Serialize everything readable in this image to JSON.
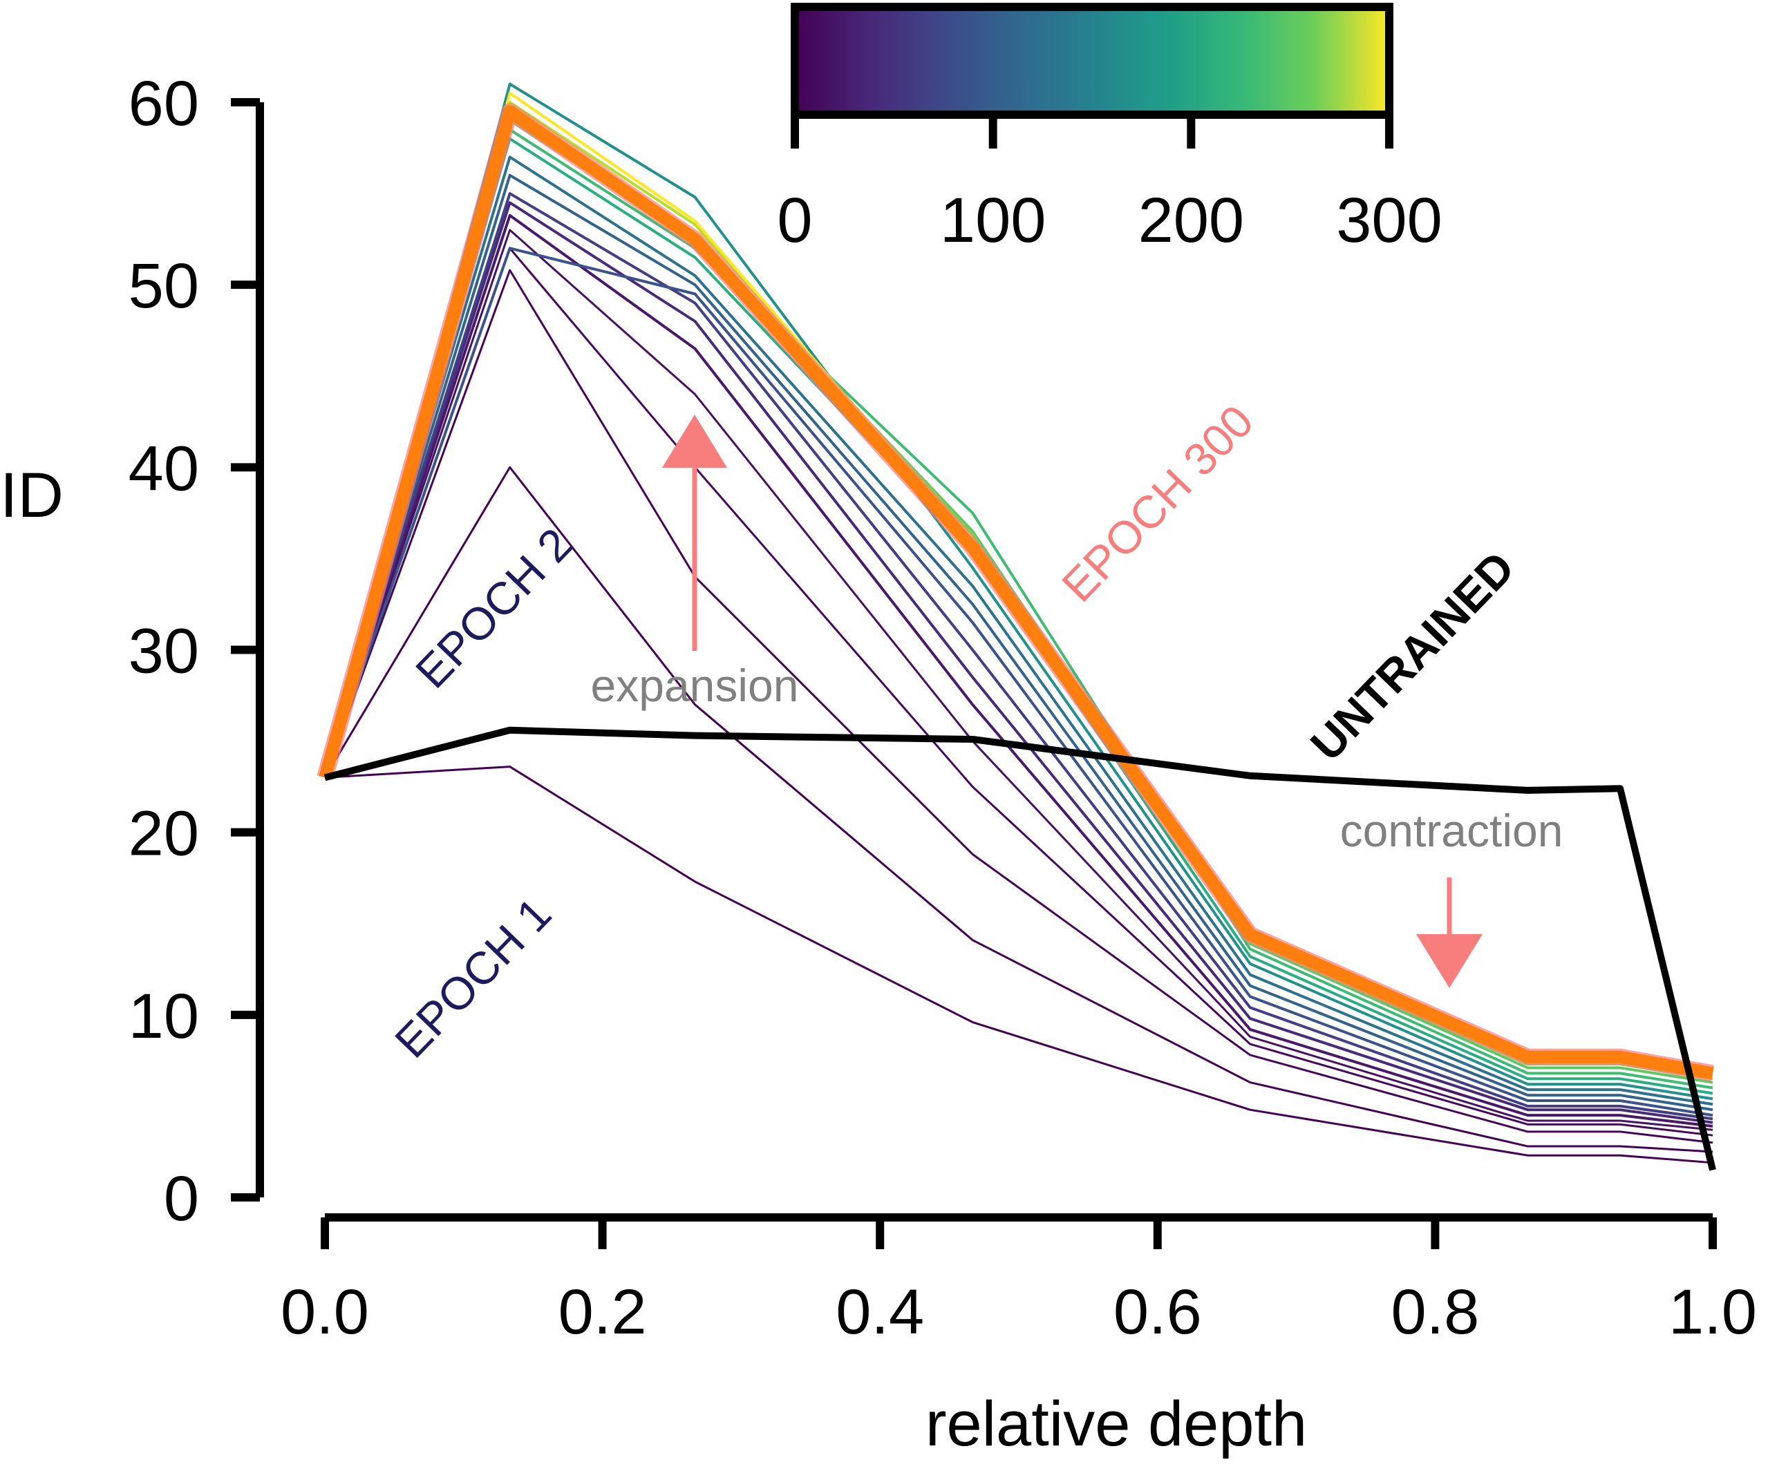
{
  "chart_data": {
    "type": "line",
    "xlabel": "relative depth",
    "ylabel": "ID",
    "xlim": [
      0.0,
      1.0
    ],
    "ylim": [
      0,
      60
    ],
    "x_ticks": [
      "0.0",
      "0.2",
      "0.4",
      "0.6",
      "0.8",
      "1.0"
    ],
    "y_ticks": [
      "0",
      "10",
      "20",
      "30",
      "40",
      "50",
      "60"
    ],
    "x": [
      0.0,
      0.1333,
      0.2667,
      0.4667,
      0.6667,
      0.8667,
      0.9333,
      1.0
    ],
    "colorbar": {
      "label_ticks": [
        "0",
        "100",
        "200",
        "300"
      ],
      "highlight_tick": "300",
      "highlight_color": "#f87e7e",
      "colormap": "viridis",
      "range": [
        0,
        300
      ]
    },
    "series": [
      {
        "name": "EPOCH 1",
        "epoch": 1,
        "color": "#440154",
        "values": [
          23.0,
          23.6,
          17.3,
          9.6,
          4.8,
          2.3,
          2.3,
          1.9
        ]
      },
      {
        "name": "EPOCH 2",
        "epoch": 2,
        "color": "#440154",
        "values": [
          23.0,
          40.0,
          27.0,
          14.1,
          6.3,
          2.8,
          2.8,
          2.5
        ]
      },
      {
        "epoch": 3,
        "color": "#450457",
        "values": [
          23.0,
          50.8,
          34.0,
          18.8,
          7.8,
          3.6,
          3.6,
          3.0
        ]
      },
      {
        "epoch": 6,
        "color": "#46085c",
        "values": [
          23.0,
          52.0,
          40.0,
          22.5,
          8.4,
          4.0,
          4.0,
          3.4
        ]
      },
      {
        "epoch": 10,
        "color": "#471063",
        "values": [
          23.0,
          53.0,
          44.0,
          25.0,
          8.8,
          4.2,
          4.2,
          3.7
        ]
      },
      {
        "epoch": 20,
        "color": "#48186a",
        "values": [
          23.0,
          53.8,
          46.5,
          27.0,
          9.2,
          4.5,
          4.5,
          3.9
        ]
      },
      {
        "epoch": 35,
        "color": "#472a7a",
        "values": [
          23.0,
          54.5,
          48.0,
          28.5,
          9.8,
          4.8,
          4.8,
          4.1
        ]
      },
      {
        "epoch": 55,
        "color": "#433e85",
        "values": [
          23.0,
          55.0,
          49.0,
          30.0,
          10.4,
          5.0,
          5.0,
          4.3
        ]
      },
      {
        "epoch": 75,
        "color": "#3b528b",
        "values": [
          23.0,
          52.0,
          49.5,
          31.5,
          11.0,
          5.3,
          5.3,
          4.5
        ]
      },
      {
        "epoch": 100,
        "color": "#33638d",
        "values": [
          23.0,
          56.0,
          50.0,
          32.5,
          11.6,
          5.6,
          5.6,
          4.8
        ]
      },
      {
        "epoch": 125,
        "color": "#2c728e",
        "values": [
          23.0,
          57.0,
          50.5,
          33.5,
          12.2,
          5.9,
          5.9,
          5.1
        ]
      },
      {
        "epoch": 150,
        "color": "#21918c",
        "values": [
          23.0,
          61.0,
          54.8,
          34.5,
          12.8,
          6.2,
          6.2,
          5.4
        ]
      },
      {
        "epoch": 175,
        "color": "#28ae80",
        "values": [
          23.0,
          58.0,
          51.5,
          35.5,
          13.2,
          6.5,
          6.5,
          5.7
        ]
      },
      {
        "epoch": 200,
        "color": "#3fbc73",
        "values": [
          23.0,
          58.5,
          52.0,
          37.5,
          13.6,
          6.8,
          6.8,
          6.0
        ]
      },
      {
        "epoch": 225,
        "color": "#5ec962",
        "values": [
          23.0,
          59.0,
          52.5,
          36.5,
          13.9,
          7.1,
          7.1,
          6.3
        ]
      },
      {
        "epoch": 250,
        "color": "#84d44b",
        "values": [
          23.0,
          59.3,
          52.8,
          36.3,
          14.0,
          7.3,
          7.3,
          6.5
        ]
      },
      {
        "epoch": 275,
        "color": "#b5de2b",
        "values": [
          23.0,
          60.0,
          53.3,
          36.0,
          14.1,
          7.4,
          7.4,
          6.7
        ]
      },
      {
        "epoch": 290,
        "color": "#fde725",
        "values": [
          23.0,
          60.5,
          53.5,
          35.8,
          14.2,
          7.5,
          7.5,
          6.9
        ]
      },
      {
        "name": "EPOCH 300",
        "epoch": 300,
        "color": "#ff7f0e",
        "values": [
          23.0,
          59.5,
          52.5,
          35.6,
          14.4,
          7.7,
          7.7,
          6.8
        ]
      },
      {
        "name": "UNTRAINED",
        "color": "#000000",
        "x": [
          0.0,
          0.1333,
          0.2667,
          0.4667,
          0.6667,
          0.8667,
          0.9333,
          1.0
        ],
        "values": [
          23.0,
          25.6,
          25.3,
          25.1,
          23.1,
          22.3,
          22.4,
          1.5
        ]
      }
    ],
    "annotations": {
      "epoch1": {
        "text": "EPOCH  1",
        "color": "#1e1a5e"
      },
      "epoch2": {
        "text": "EPOCH  2",
        "color": "#1e1a5e"
      },
      "epoch300": {
        "text": "EPOCH  300",
        "color": "#f87e7e"
      },
      "untrained": {
        "text": "UNTRAINED",
        "color": "#000000"
      },
      "expansion": {
        "text": "expansion",
        "color": "#808080",
        "arrow_color": "#f87e7e",
        "arrow_direction": "up"
      },
      "contraction": {
        "text": "contraction",
        "color": "#808080",
        "arrow_color": "#f87e7e",
        "arrow_direction": "down"
      }
    },
    "grid": false,
    "legend": "none"
  }
}
